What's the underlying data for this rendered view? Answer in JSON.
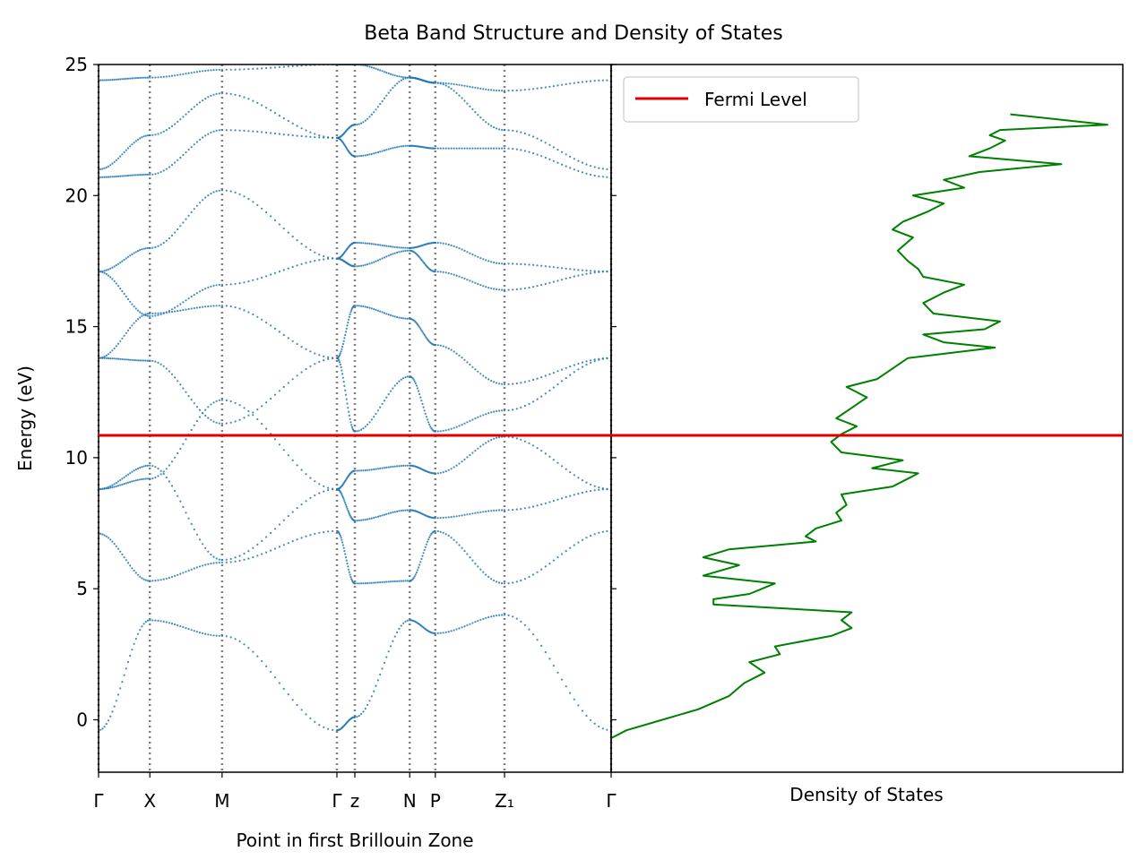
{
  "title": "Beta Band Structure and Density of States",
  "colors": {
    "band": "#1f77b4",
    "fermi": "#e00000",
    "dos": "#008000",
    "kline": "#808080"
  },
  "chart_data": [
    {
      "type": "scatter",
      "panel": "band-structure",
      "xlabel": "Point in first Brillouin Zone",
      "ylabel": "Energy (eV)",
      "ylim": [
        -2,
        25
      ],
      "yticks": [
        0,
        5,
        10,
        15,
        20,
        25
      ],
      "xlim": [
        0,
        1
      ],
      "kpoints": [
        {
          "label": "Γ",
          "x": 0.0
        },
        {
          "label": "X",
          "x": 0.1
        },
        {
          "label": "M",
          "x": 0.241
        },
        {
          "label": "Γ",
          "x": 0.465
        },
        {
          "label": "z",
          "x": 0.5
        },
        {
          "label": "N",
          "x": 0.607
        },
        {
          "label": "P",
          "x": 0.657
        },
        {
          "label": "Z₁",
          "x": 0.792
        },
        {
          "label": "Γ",
          "x": 1.0
        }
      ],
      "fermi_level": 10.85,
      "bands": [
        {
          "x": [
            0,
            0.1,
            0.241,
            0.465,
            0.5,
            0.607,
            0.657,
            0.792,
            1.0
          ],
          "y": [
            -0.4,
            3.8,
            3.2,
            -0.4,
            0.1,
            3.8,
            3.3,
            4.0,
            -0.4
          ]
        },
        {
          "x": [
            0,
            0.1,
            0.241,
            0.465,
            0.5,
            0.607,
            0.657,
            0.792,
            1.0
          ],
          "y": [
            7.1,
            5.3,
            6.0,
            7.2,
            5.2,
            5.3,
            7.2,
            5.2,
            7.2
          ]
        },
        {
          "x": [
            0,
            0.1,
            0.241,
            0.465,
            0.5,
            0.607,
            0.657,
            0.792,
            1.0
          ],
          "y": [
            8.8,
            9.7,
            6.1,
            8.8,
            7.6,
            8.0,
            7.7,
            8.0,
            8.8
          ]
        },
        {
          "x": [
            0,
            0.1,
            0.241,
            0.465,
            0.5,
            0.607,
            0.657,
            0.792,
            1.0
          ],
          "y": [
            8.8,
            9.2,
            12.2,
            8.8,
            9.5,
            9.7,
            9.4,
            10.8,
            8.8
          ]
        },
        {
          "x": [
            0,
            0.1,
            0.241,
            0.465,
            0.5,
            0.607,
            0.657,
            0.792,
            1.0
          ],
          "y": [
            13.8,
            13.7,
            11.3,
            13.8,
            11.0,
            13.1,
            11.0,
            11.8,
            13.8
          ]
        },
        {
          "x": [
            0,
            0.1,
            0.241,
            0.465,
            0.5,
            0.607,
            0.657,
            0.792,
            1.0
          ],
          "y": [
            13.8,
            15.5,
            15.8,
            13.8,
            15.8,
            15.3,
            14.3,
            12.8,
            13.8
          ]
        },
        {
          "x": [
            0,
            0.1,
            0.241,
            0.465,
            0.5,
            0.607,
            0.657,
            0.792,
            1.0
          ],
          "y": [
            17.1,
            15.4,
            16.6,
            17.6,
            17.3,
            17.9,
            17.1,
            16.4,
            17.1
          ]
        },
        {
          "x": [
            0,
            0.1,
            0.241,
            0.465,
            0.5,
            0.607,
            0.657,
            0.792,
            1.0
          ],
          "y": [
            17.1,
            18.0,
            20.2,
            17.6,
            18.2,
            18.0,
            18.2,
            17.4,
            17.1
          ]
        },
        {
          "x": [
            0,
            0.1,
            0.241,
            0.465,
            0.5,
            0.607,
            0.657,
            0.792,
            1.0
          ],
          "y": [
            20.7,
            20.8,
            22.5,
            22.2,
            21.5,
            21.9,
            21.8,
            21.8,
            20.7
          ]
        },
        {
          "x": [
            0,
            0.1,
            0.241,
            0.465,
            0.5,
            0.607,
            0.657,
            0.792,
            1.0
          ],
          "y": [
            21.0,
            22.3,
            23.9,
            22.2,
            22.7,
            24.5,
            24.3,
            22.5,
            21.0
          ]
        },
        {
          "x": [
            0,
            0.1,
            0.241,
            0.465,
            0.5,
            0.607,
            0.657,
            0.792,
            1.0
          ],
          "y": [
            24.4,
            24.5,
            24.8,
            25.0,
            25.0,
            24.5,
            24.3,
            24.0,
            24.4
          ]
        }
      ]
    },
    {
      "type": "line",
      "panel": "density-of-states",
      "xlabel": "Density of States",
      "ylabel": "",
      "ylim": [
        -2,
        25
      ],
      "legend": [
        {
          "name": "Fermi Level",
          "color": "#e00000"
        }
      ],
      "legend_position": "top-left",
      "fermi_level": 10.85,
      "dos": {
        "energy": [
          -0.7,
          -0.4,
          0.0,
          0.4,
          0.9,
          1.4,
          1.8,
          2.2,
          2.5,
          2.8,
          3.2,
          3.5,
          3.8,
          4.1,
          4.4,
          4.6,
          4.8,
          5.2,
          5.5,
          5.9,
          6.2,
          6.5,
          6.8,
          7.0,
          7.3,
          7.6,
          7.9,
          8.2,
          8.6,
          8.9,
          9.2,
          9.4,
          9.6,
          9.9,
          10.2,
          10.6,
          10.9,
          11.2,
          11.5,
          11.9,
          12.3,
          12.7,
          13.0,
          13.4,
          13.8,
          14.2,
          14.4,
          14.7,
          14.9,
          15.2,
          15.5,
          15.9,
          16.3,
          16.6,
          16.9,
          17.2,
          17.5,
          17.9,
          18.4,
          18.7,
          19.0,
          19.4,
          19.7,
          20.0,
          20.3,
          20.6,
          20.9,
          21.2,
          21.5,
          21.8,
          22.1,
          22.3,
          22.5,
          22.7,
          23.1
        ],
        "density": [
          0.0,
          0.03,
          0.1,
          0.17,
          0.23,
          0.26,
          0.3,
          0.27,
          0.33,
          0.32,
          0.43,
          0.47,
          0.45,
          0.47,
          0.2,
          0.2,
          0.27,
          0.32,
          0.18,
          0.25,
          0.18,
          0.23,
          0.4,
          0.38,
          0.4,
          0.45,
          0.44,
          0.46,
          0.45,
          0.55,
          0.58,
          0.6,
          0.51,
          0.57,
          0.45,
          0.43,
          0.45,
          0.48,
          0.44,
          0.47,
          0.5,
          0.46,
          0.52,
          0.55,
          0.58,
          0.75,
          0.65,
          0.61,
          0.73,
          0.76,
          0.63,
          0.61,
          0.65,
          0.69,
          0.61,
          0.6,
          0.58,
          0.56,
          0.59,
          0.55,
          0.57,
          0.62,
          0.65,
          0.59,
          0.69,
          0.65,
          0.72,
          0.88,
          0.7,
          0.74,
          0.77,
          0.74,
          0.76,
          0.97,
          0.78
        ]
      }
    }
  ]
}
